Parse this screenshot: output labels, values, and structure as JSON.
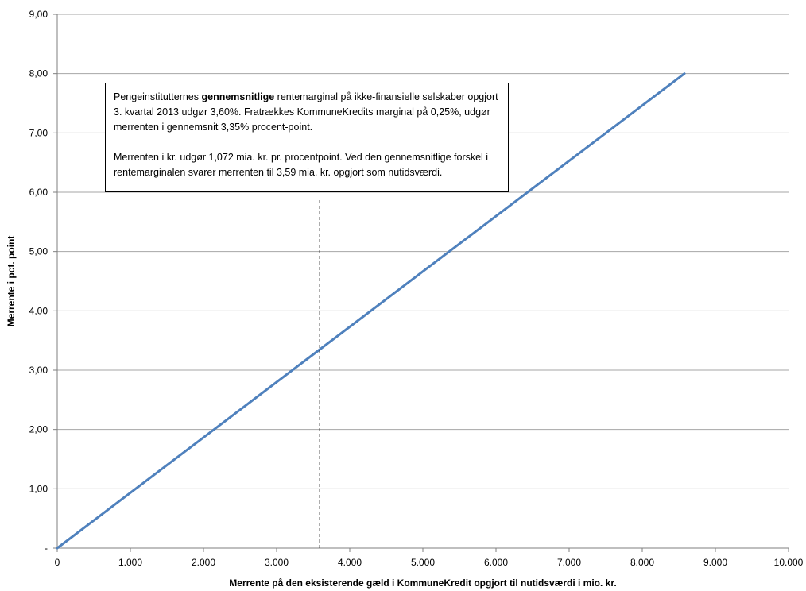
{
  "chart_data": {
    "type": "line",
    "title": "",
    "xlabel": "Merrente på den eksisterende gæld i KommuneKredit opgjort til nutidsværdi i mio. kr.",
    "ylabel": "Merrente i pct. point",
    "xlim": [
      0,
      10000
    ],
    "ylim": [
      0,
      9
    ],
    "x_ticks": [
      0,
      1000,
      2000,
      3000,
      4000,
      5000,
      6000,
      7000,
      8000,
      9000,
      10000
    ],
    "x_tick_labels": [
      "0",
      "1.000",
      "2.000",
      "3.000",
      "4.000",
      "5.000",
      "6.000",
      "7.000",
      "8.000",
      "9.000",
      "10.000"
    ],
    "y_ticks": [
      0,
      1,
      2,
      3,
      4,
      5,
      6,
      7,
      8,
      9
    ],
    "y_tick_labels": [
      "-",
      "1,00",
      "2,00",
      "3,00",
      "4,00",
      "5,00",
      "6,00",
      "7,00",
      "8,00",
      "9,00"
    ],
    "grid": "horizontal",
    "legend": "none",
    "series": [
      {
        "x": [
          0,
          8576
        ],
        "y": [
          0,
          8.0
        ]
      }
    ],
    "reference_line": {
      "x": 3590,
      "y_from": 0,
      "y_to": 5.9,
      "style": "dashed"
    },
    "annotation": {
      "p1_pre": "Pengeinstitutternes ",
      "p1_bold": "gennemsnitlige",
      "p1_post": " rentemarginal på ikke-finansielle selskaber opgjort 3. kvartal 2013 udgør 3,60%. Fratrækkes KommuneKredits marginal på 0,25%, udgør merrenten i gennemsnit 3,35% procent-point.",
      "p2": "Merrenten i kr. udgør 1,072 mia. kr. pr. procentpoint. Ved den gennemsnitlige forskel i rentemarginalen svarer merrenten til 3,59 mia. kr. opgjort som nutidsværdi."
    }
  },
  "colors": {
    "series": "#4f81bd",
    "grid": "#a6a6a6",
    "axis": "#7f7f7f",
    "reference": "#000000"
  }
}
